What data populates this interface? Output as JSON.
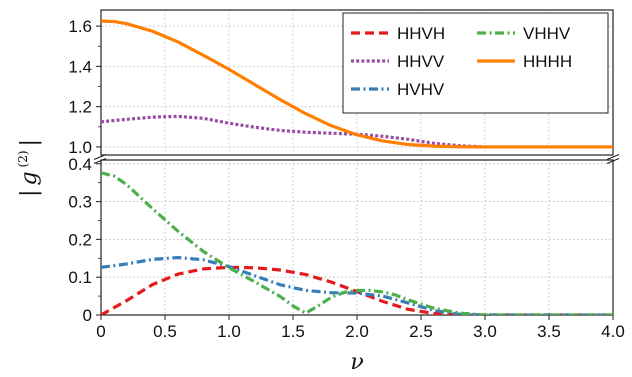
{
  "chart_data": {
    "type": "line",
    "xlabel": "ν",
    "ylabel": "|g(2)|",
    "ylabel_parts": {
      "bar": "|",
      "g": "g",
      "sup": "(2)"
    },
    "xlim": [
      0,
      4.0
    ],
    "broken_y_axis": true,
    "panels": {
      "upper": {
        "ylim": [
          0.96,
          1.68
        ],
        "yticks": [
          1.0,
          1.2,
          1.4,
          1.6
        ]
      },
      "lower": {
        "ylim": [
          0,
          0.41
        ],
        "yticks": [
          0,
          0.1,
          0.2,
          0.3,
          0.4
        ]
      }
    },
    "xticks": [
      0,
      0.5,
      1.0,
      1.5,
      2.0,
      2.5,
      3.0,
      3.5,
      4.0
    ],
    "grid": true,
    "legend_position": "top-right",
    "series": [
      {
        "name": "HHVH",
        "color": "#e41a1c",
        "dash": "dashed",
        "panel": "lower",
        "x": [
          0,
          0.2,
          0.4,
          0.6,
          0.8,
          1.0,
          1.2,
          1.4,
          1.6,
          1.8,
          2.0,
          2.2,
          2.4,
          2.6,
          2.8,
          3.0,
          3.5,
          4.0
        ],
        "y": [
          0.0,
          0.038,
          0.08,
          0.108,
          0.122,
          0.126,
          0.125,
          0.119,
          0.107,
          0.087,
          0.062,
          0.036,
          0.015,
          0.004,
          0.0005,
          0.0,
          0.0,
          0.0
        ]
      },
      {
        "name": "HHVV",
        "color": "#984ea3",
        "dash": "dotted",
        "panel": "upper",
        "x": [
          0,
          0.2,
          0.4,
          0.6,
          0.8,
          1.0,
          1.2,
          1.4,
          1.6,
          1.8,
          2.0,
          2.2,
          2.4,
          2.6,
          2.8,
          3.0,
          3.5,
          4.0
        ],
        "y": [
          1.125,
          1.137,
          1.148,
          1.152,
          1.142,
          1.118,
          1.098,
          1.082,
          1.073,
          1.068,
          1.063,
          1.053,
          1.038,
          1.018,
          1.006,
          1.0,
          1.0,
          1.0
        ]
      },
      {
        "name": "HVHV",
        "color": "#377eb8",
        "dash": "dashdot",
        "panel": "lower",
        "x": [
          0,
          0.2,
          0.4,
          0.6,
          0.8,
          1.0,
          1.2,
          1.4,
          1.6,
          1.8,
          2.0,
          2.2,
          2.4,
          2.6,
          2.8,
          3.0,
          3.5,
          4.0
        ],
        "y": [
          0.126,
          0.135,
          0.147,
          0.152,
          0.146,
          0.128,
          0.104,
          0.08,
          0.065,
          0.059,
          0.058,
          0.05,
          0.032,
          0.012,
          0.002,
          0.0,
          0.0,
          0.0
        ]
      },
      {
        "name": "VHHV",
        "color": "#4daf4a",
        "dash": "dashdot",
        "panel": "lower",
        "x": [
          0,
          0.1,
          0.2,
          0.4,
          0.6,
          0.8,
          1.0,
          1.2,
          1.4,
          1.5,
          1.6,
          1.7,
          1.8,
          1.9,
          2.0,
          2.1,
          2.2,
          2.3,
          2.4,
          2.6,
          2.8,
          3.0,
          3.5,
          4.0
        ],
        "y": [
          0.376,
          0.368,
          0.345,
          0.282,
          0.222,
          0.168,
          0.125,
          0.088,
          0.049,
          0.024,
          0.005,
          0.025,
          0.047,
          0.06,
          0.065,
          0.065,
          0.061,
          0.053,
          0.04,
          0.018,
          0.005,
          0.0,
          0.0,
          0.0
        ]
      },
      {
        "name": "HHHH",
        "color": "#ff7f00",
        "dash": "solid",
        "panel": "upper",
        "x": [
          0,
          0.1,
          0.2,
          0.4,
          0.6,
          0.8,
          1.0,
          1.2,
          1.4,
          1.6,
          1.8,
          2.0,
          2.2,
          2.4,
          2.6,
          2.8,
          3.0,
          3.5,
          4.0
        ],
        "y": [
          1.625,
          1.623,
          1.612,
          1.575,
          1.522,
          1.455,
          1.385,
          1.31,
          1.235,
          1.165,
          1.105,
          1.06,
          1.03,
          1.012,
          1.004,
          1.001,
          1.0,
          1.0,
          1.0
        ]
      }
    ]
  }
}
